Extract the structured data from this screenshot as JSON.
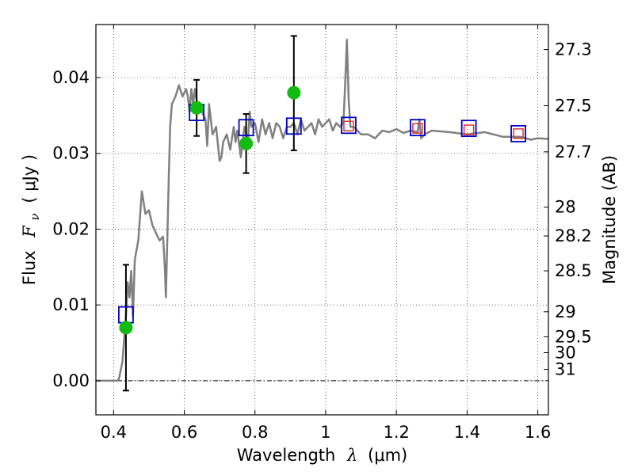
{
  "chart_data": {
    "type": "scatter",
    "xlabel": {
      "prefix": "Wavelength",
      "symbol": "λ",
      "unit": "(μm)"
    },
    "ylabel": {
      "prefix": "Flux",
      "symbol": "F",
      "subscript": "ν",
      "unit": "( μJy )"
    },
    "y2label": "Magnitude (AB)",
    "xlim": [
      0.35,
      1.63
    ],
    "ylim": [
      -0.0045,
      0.047
    ],
    "grid": true,
    "x_ticks": [
      {
        "value": 0.4,
        "label": "0.4"
      },
      {
        "value": 0.6,
        "label": "0.6"
      },
      {
        "value": 0.8,
        "label": "0.8"
      },
      {
        "value": 1.0,
        "label": "1"
      },
      {
        "value": 1.2,
        "label": "1.2"
      },
      {
        "value": 1.4,
        "label": "1.4"
      },
      {
        "value": 1.6,
        "label": "1.6"
      }
    ],
    "y_ticks": [
      {
        "value": 0.0,
        "label": "0.00"
      },
      {
        "value": 0.01,
        "label": "0.01"
      },
      {
        "value": 0.02,
        "label": "0.02"
      },
      {
        "value": 0.03,
        "label": "0.03"
      },
      {
        "value": 0.04,
        "label": "0.04"
      }
    ],
    "y2_ticks": [
      {
        "label": "27.3",
        "flux": 0.0437
      },
      {
        "label": "27.5",
        "flux": 0.0363
      },
      {
        "label": "27.7",
        "flux": 0.0302
      },
      {
        "label": "28",
        "flux": 0.0229
      },
      {
        "label": "28.2",
        "flux": 0.0191
      },
      {
        "label": "28.5",
        "flux": 0.0145
      },
      {
        "label": "29",
        "flux": 0.0091
      },
      {
        "label": "29.5",
        "flux": 0.0058
      },
      {
        "label": "30",
        "flux": 0.0037
      },
      {
        "label": "31",
        "flux": 0.0015
      }
    ],
    "model_spectrum": {
      "color": "#808080",
      "x": [
        0.35,
        0.41,
        0.415,
        0.425,
        0.435,
        0.44,
        0.445,
        0.45,
        0.455,
        0.46,
        0.47,
        0.48,
        0.49,
        0.5,
        0.51,
        0.52,
        0.53,
        0.54,
        0.545,
        0.548,
        0.552,
        0.556,
        0.56,
        0.565,
        0.575,
        0.585,
        0.595,
        0.605,
        0.61,
        0.615,
        0.62,
        0.625,
        0.63,
        0.64,
        0.645,
        0.65,
        0.66,
        0.665,
        0.67,
        0.68,
        0.69,
        0.7,
        0.705,
        0.71,
        0.72,
        0.73,
        0.74,
        0.745,
        0.75,
        0.76,
        0.77,
        0.78,
        0.785,
        0.79,
        0.8,
        0.81,
        0.82,
        0.83,
        0.84,
        0.85,
        0.86,
        0.87,
        0.88,
        0.89,
        0.9,
        0.91,
        0.92,
        0.93,
        0.94,
        0.95,
        0.96,
        0.97,
        0.98,
        0.99,
        1.0,
        1.01,
        1.02,
        1.03,
        1.04,
        1.05,
        1.055,
        1.06,
        1.065,
        1.07,
        1.08,
        1.09,
        1.1,
        1.12,
        1.14,
        1.16,
        1.18,
        1.2,
        1.22,
        1.24,
        1.26,
        1.265,
        1.27,
        1.28,
        1.3,
        1.35,
        1.4,
        1.45,
        1.5,
        1.55,
        1.58,
        1.6,
        1.63
      ],
      "y": [
        0.0,
        0.0,
        0.0002,
        0.0025,
        0.0085,
        0.013,
        0.011,
        0.0145,
        0.0085,
        0.016,
        0.0185,
        0.025,
        0.022,
        0.0225,
        0.0205,
        0.0195,
        0.0185,
        0.019,
        0.015,
        0.011,
        0.0185,
        0.0265,
        0.0335,
        0.0365,
        0.0375,
        0.039,
        0.0375,
        0.0385,
        0.0375,
        0.0355,
        0.0385,
        0.0365,
        0.0385,
        0.0355,
        0.0365,
        0.0355,
        0.0345,
        0.031,
        0.0365,
        0.0325,
        0.0335,
        0.029,
        0.0295,
        0.0315,
        0.0325,
        0.0305,
        0.0335,
        0.0315,
        0.033,
        0.0295,
        0.0335,
        0.0315,
        0.0355,
        0.0335,
        0.034,
        0.0315,
        0.0345,
        0.0325,
        0.034,
        0.032,
        0.034,
        0.0335,
        0.032,
        0.0335,
        0.0335,
        0.034,
        0.0325,
        0.0345,
        0.033,
        0.0335,
        0.034,
        0.0325,
        0.0345,
        0.0335,
        0.034,
        0.0345,
        0.033,
        0.034,
        0.0335,
        0.034,
        0.039,
        0.045,
        0.037,
        0.0335,
        0.0335,
        0.033,
        0.0325,
        0.0325,
        0.032,
        0.033,
        0.0328,
        0.0332,
        0.0327,
        0.033,
        0.0328,
        0.0345,
        0.032,
        0.0325,
        0.033,
        0.0328,
        0.0325,
        0.0328,
        0.0322,
        0.0322,
        0.0318,
        0.032,
        0.0319
      ]
    },
    "model_bandpass": {
      "name": "",
      "marker": "open-square",
      "color": "#0000cc",
      "x": [
        0.435,
        0.635,
        0.775,
        0.91,
        1.065,
        1.26,
        1.405,
        1.545
      ],
      "y": [
        0.0087,
        0.0354,
        0.0334,
        0.0336,
        0.0337,
        0.0334,
        0.0333,
        0.0326
      ]
    },
    "observed_flux": {
      "name": "",
      "marker": "filled-circle",
      "color": "#11bb11",
      "x": [
        0.435,
        0.635,
        0.775,
        0.91
      ],
      "y": [
        0.007,
        0.036,
        0.0313,
        0.038
      ],
      "yerr_low": [
        0.0083,
        0.0037,
        0.0039,
        0.0076
      ],
      "yerr_high": [
        0.0083,
        0.0037,
        0.0039,
        0.0075
      ]
    },
    "nir_points": {
      "name": "",
      "marker": "open-square-small",
      "color": "#dd3333",
      "x": [
        1.065,
        1.26,
        1.405,
        1.545
      ],
      "y": [
        0.0336,
        0.0333,
        0.0331,
        0.0326
      ]
    }
  }
}
